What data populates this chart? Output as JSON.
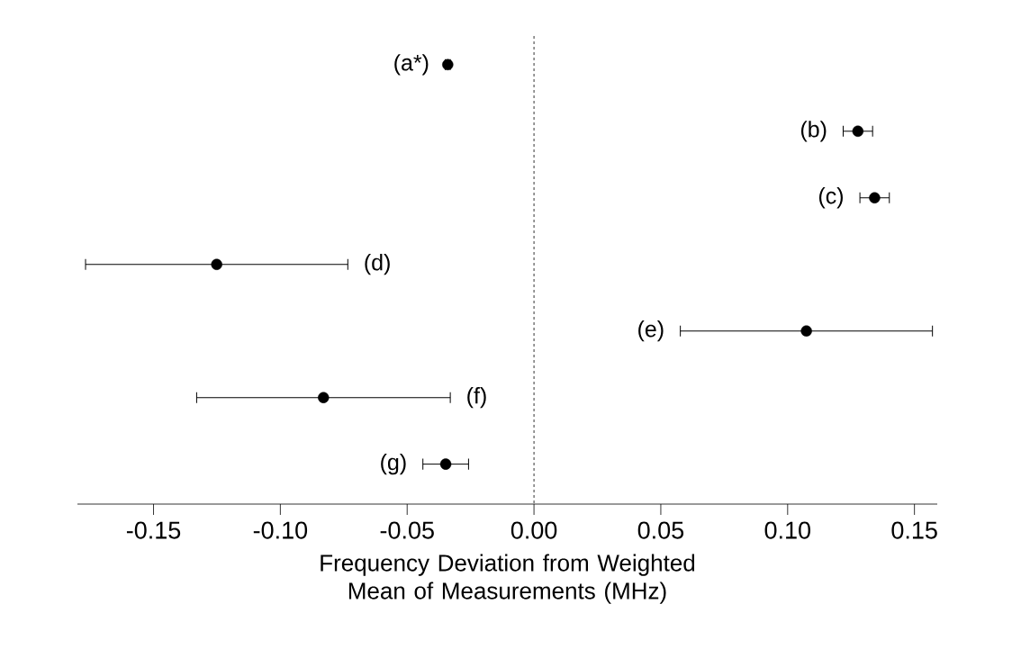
{
  "chart_data": {
    "type": "scatter",
    "orientation": "horizontal",
    "categories": [
      "(a*)",
      "(b)",
      "(c)",
      "(d)",
      "(e)",
      "(f)",
      "(g)"
    ],
    "values": [
      -0.034,
      0.1277,
      0.1343,
      -0.1251,
      0.1074,
      -0.083,
      -0.0348
    ],
    "errors": [
      0.001,
      0.0058,
      0.0058,
      0.0517,
      0.0497,
      0.05,
      0.009
    ],
    "color": "#000000",
    "marker": "circle",
    "xlim": [
      -0.18,
      0.159
    ],
    "xticks": [
      -0.15,
      {
        "value": -0.1,
        "label": "-0.10"
      },
      -0.05,
      {
        "value": 0,
        "label": "0.00"
      },
      0.05,
      {
        "value": 0.1,
        "label": "0.10"
      },
      0.15
    ],
    "xlabel": "Frequency Deviation from Weighted Mean of Measurements (MHz)",
    "ref_lines": [
      {
        "axis": "x",
        "value": 0,
        "line_style": "dashed"
      }
    ],
    "grid": false
  }
}
